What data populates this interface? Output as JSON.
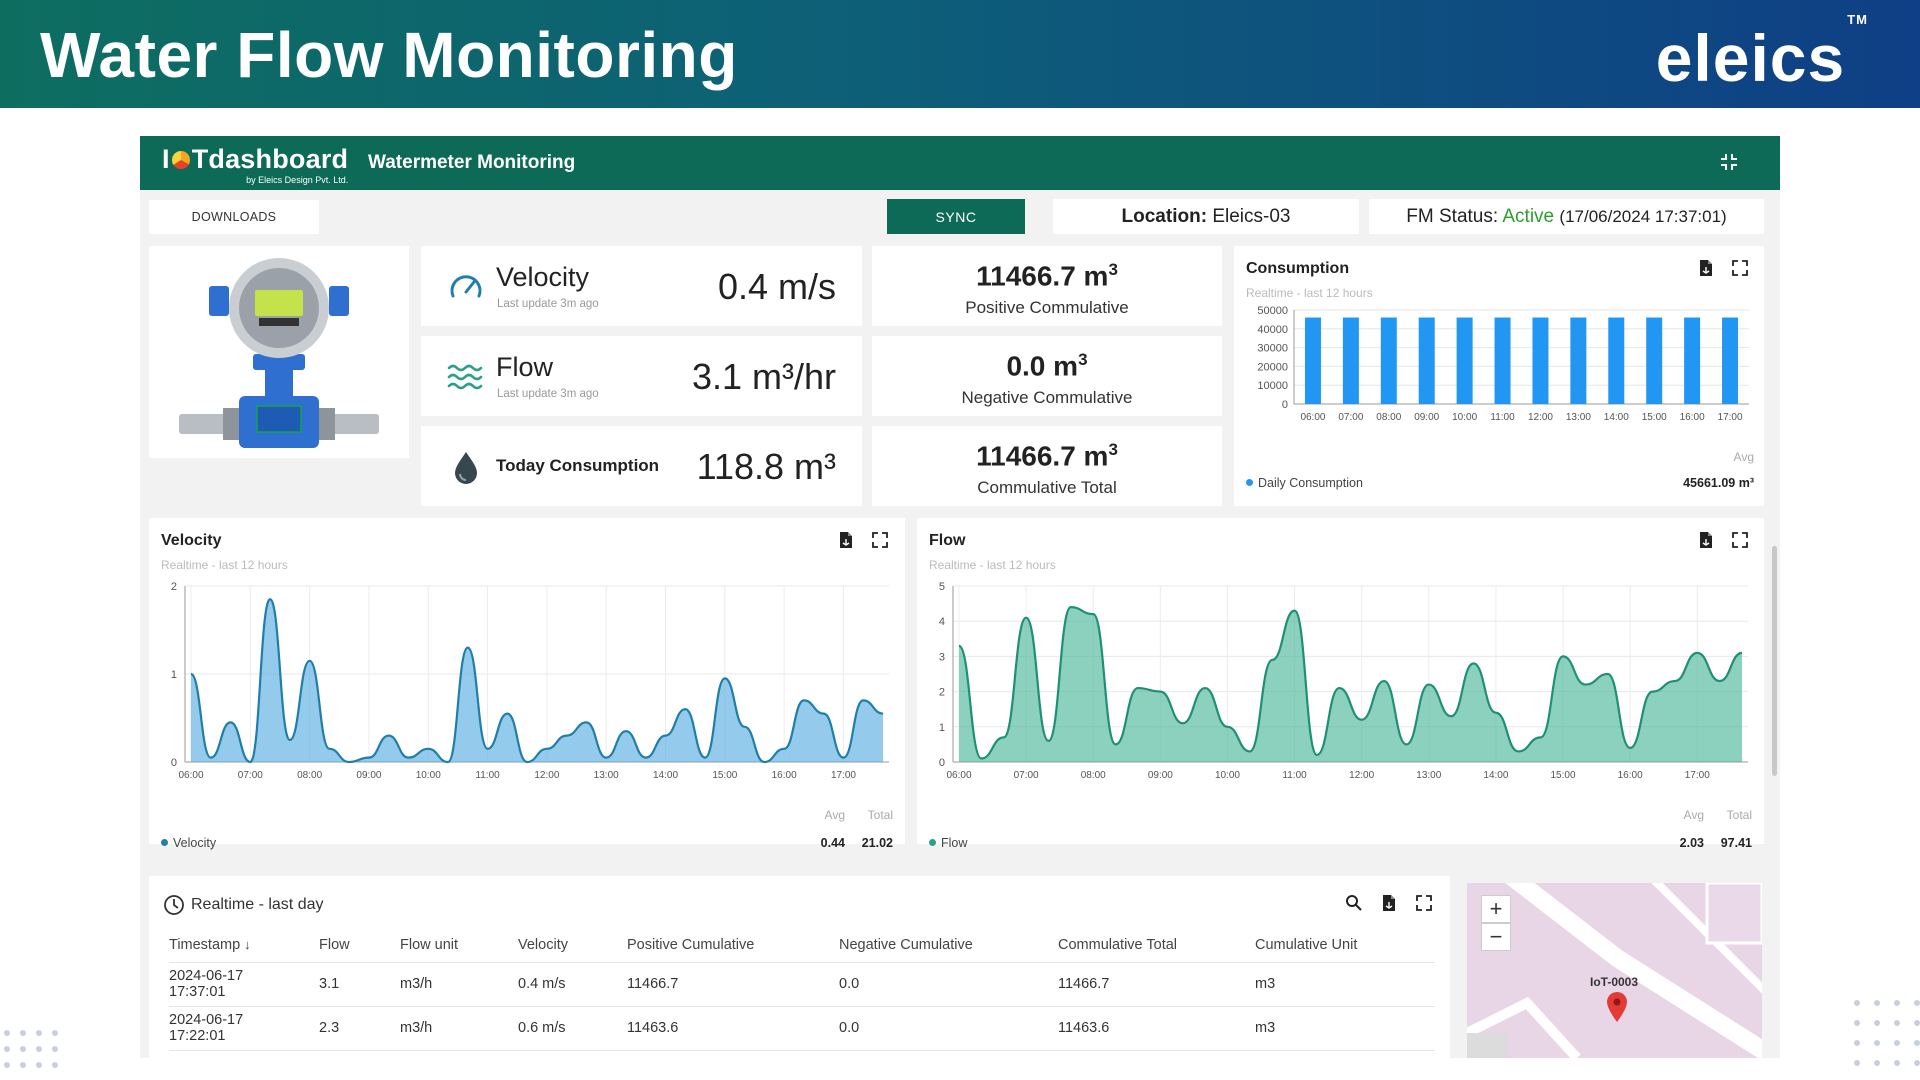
{
  "banner": {
    "title": "Water Flow Monitoring",
    "logo": "eleics",
    "tm": "TM"
  },
  "app": {
    "logo_main_pre": "I",
    "logo_main_post": "Tdashboard",
    "logo_sub": "by Eleics Design Pvt. Ltd.",
    "title": "Watermeter Monitoring"
  },
  "toolbar": {
    "downloads_label": "DOWNLOADS",
    "sync_label": "SYNC",
    "location_label": "Location:",
    "location_value": "Eleics-03",
    "status_label": "FM Status:",
    "status_value": "Active",
    "status_time": "(17/06/2024 17:37:01)",
    "colors": {
      "primary": "#0c6a56",
      "active": "#2aa02a"
    }
  },
  "stats": {
    "velocity": {
      "name": "Velocity",
      "sub": "Last update 3m ago",
      "value": "0.4 m/s",
      "icon": "speedometer-icon"
    },
    "flow": {
      "name": "Flow",
      "sub": "Last update 3m ago",
      "value": "3.1 m³/hr",
      "icon": "waves-icon"
    },
    "today": {
      "name": "Today Consumption",
      "value": "118.8 m³",
      "icon": "water-drop-icon"
    }
  },
  "cumulative": {
    "positive": {
      "value": "11466.7 m",
      "sup": "3",
      "label": "Positive Commulative"
    },
    "negative": {
      "value": "0.0 m",
      "sup": "3",
      "label": "Negative Commulative"
    },
    "total": {
      "value": "11466.7 m",
      "sup": "3",
      "label": "Commulative Total"
    }
  },
  "consumption_card": {
    "title": "Consumption",
    "sub": "Realtime - last 12 hours",
    "legend": "Daily Consumption",
    "avg_label": "Avg",
    "avg_value": "45661.09 m³"
  },
  "velocity_card": {
    "title": "Velocity",
    "sub": "Realtime - last 12 hours",
    "legend": "Velocity",
    "avg_label": "Avg",
    "avg_value": "0.44",
    "total_label": "Total",
    "total_value": "21.02"
  },
  "flow_card": {
    "title": "Flow",
    "sub": "Realtime - last 12 hours",
    "legend": "Flow",
    "avg_label": "Avg",
    "avg_value": "2.03",
    "total_label": "Total",
    "total_value": "97.41"
  },
  "chart_data": [
    {
      "type": "bar",
      "categories": [
        "06:00",
        "07:00",
        "08:00",
        "09:00",
        "10:00",
        "11:00",
        "12:00",
        "13:00",
        "14:00",
        "15:00",
        "16:00",
        "17:00"
      ],
      "series": [
        {
          "name": "Daily Consumption",
          "values": [
            46000,
            46000,
            46000,
            46000,
            46000,
            46000,
            46000,
            46000,
            46000,
            46000,
            46000,
            46000
          ]
        }
      ],
      "yticks": [
        0,
        10000,
        20000,
        30000,
        40000,
        50000
      ],
      "ylim": [
        0,
        50000
      ],
      "color": "#2196f3"
    },
    {
      "type": "area",
      "x": [
        "06:00",
        "06:20",
        "06:40",
        "07:00",
        "07:20",
        "07:40",
        "08:00",
        "08:20",
        "08:40",
        "09:00",
        "09:20",
        "09:40",
        "10:00",
        "10:20",
        "10:40",
        "11:00",
        "11:20",
        "11:40",
        "12:00",
        "12:20",
        "12:40",
        "13:00",
        "13:20",
        "13:40",
        "14:00",
        "14:20",
        "14:40",
        "15:00",
        "15:20",
        "15:40",
        "16:00",
        "16:20",
        "16:40",
        "17:00",
        "17:20",
        "17:40"
      ],
      "series": [
        {
          "name": "Velocity",
          "values": [
            1.0,
            0.05,
            0.45,
            0.0,
            1.85,
            0.25,
            1.15,
            0.15,
            0.0,
            0.05,
            0.3,
            0.05,
            0.15,
            0.0,
            1.3,
            0.15,
            0.55,
            0.0,
            0.15,
            0.3,
            0.45,
            0.05,
            0.35,
            0.05,
            0.3,
            0.6,
            0.05,
            0.95,
            0.4,
            0.0,
            0.15,
            0.7,
            0.55,
            0.05,
            0.7,
            0.55
          ]
        }
      ],
      "xticks": [
        "06:00",
        "07:00",
        "08:00",
        "09:00",
        "10:00",
        "11:00",
        "12:00",
        "13:00",
        "14:00",
        "15:00",
        "16:00",
        "17:00"
      ],
      "yticks": [
        0,
        1,
        2
      ],
      "ylim": [
        0,
        2
      ],
      "color": "#5aaee0"
    },
    {
      "type": "area",
      "x": [
        "06:00",
        "06:20",
        "06:40",
        "07:00",
        "07:20",
        "07:40",
        "08:00",
        "08:20",
        "08:40",
        "09:00",
        "09:20",
        "09:40",
        "10:00",
        "10:20",
        "10:40",
        "11:00",
        "11:20",
        "11:40",
        "12:00",
        "12:20",
        "12:40",
        "13:00",
        "13:20",
        "13:40",
        "14:00",
        "14:20",
        "14:40",
        "15:00",
        "15:20",
        "15:40",
        "16:00",
        "16:20",
        "16:40",
        "17:00",
        "17:20",
        "17:40"
      ],
      "series": [
        {
          "name": "Flow",
          "values": [
            3.3,
            0.1,
            0.7,
            4.1,
            0.6,
            4.4,
            4.2,
            0.5,
            2.1,
            2.0,
            1.1,
            2.1,
            1.0,
            0.3,
            2.9,
            4.3,
            0.2,
            2.1,
            1.2,
            2.3,
            0.5,
            2.2,
            1.3,
            2.8,
            1.4,
            0.3,
            0.7,
            3.0,
            2.2,
            2.5,
            0.4,
            2.0,
            2.3,
            3.1,
            2.3,
            3.1
          ]
        }
      ],
      "xticks": [
        "06:00",
        "07:00",
        "08:00",
        "09:00",
        "10:00",
        "11:00",
        "12:00",
        "13:00",
        "14:00",
        "15:00",
        "16:00",
        "17:00"
      ],
      "yticks": [
        0,
        1,
        2,
        3,
        4,
        5
      ],
      "ylim": [
        0,
        5
      ],
      "color": "#4db89a"
    }
  ],
  "table": {
    "title": "Realtime - last day",
    "columns": [
      "Timestamp",
      "Flow",
      "Flow unit",
      "Velocity",
      "Positive Cumulative",
      "Negative Cumulative",
      "Commulative Total",
      "Cumulative Unit"
    ],
    "rows": [
      [
        "2024-06-17 17:37:01",
        "3.1",
        "m3/h",
        "0.4 m/s",
        "11466.7",
        "0.0",
        "11466.7",
        "m3"
      ],
      [
        "2024-06-17 17:22:01",
        "2.3",
        "m3/h",
        "0.6 m/s",
        "11463.6",
        "0.0",
        "11463.6",
        "m3"
      ]
    ]
  },
  "map": {
    "zoom_in": "+",
    "zoom_out": "−",
    "marker_label": "IoT-0003"
  }
}
